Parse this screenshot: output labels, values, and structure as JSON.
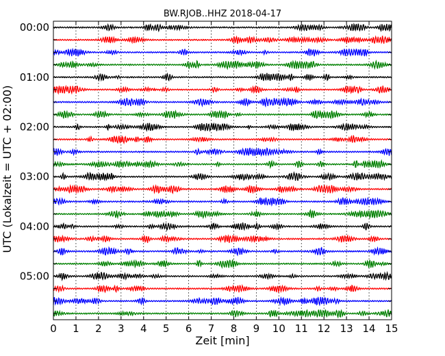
{
  "chart_data": {
    "type": "line",
    "title": "BW.RJOB..HHZ 2018-04-17",
    "xlabel": "Zeit  [min]",
    "ylabel": "UTC (Lokalzeit = UTC + 02:00)",
    "xlim": [
      0,
      15
    ],
    "x_ticks": [
      "0",
      "1",
      "2",
      "3",
      "4",
      "5",
      "6",
      "7",
      "8",
      "9",
      "10",
      "11",
      "12",
      "13",
      "14",
      "15"
    ],
    "y_tick_labels": [
      "00:00",
      "01:00",
      "02:00",
      "03:00",
      "04:00",
      "05:00"
    ],
    "rows": 24,
    "row_minutes": 15,
    "grid": "vertical dotted",
    "colors": [
      "#000000",
      "#ff0000",
      "#0000ff",
      "#008000"
    ]
  }
}
